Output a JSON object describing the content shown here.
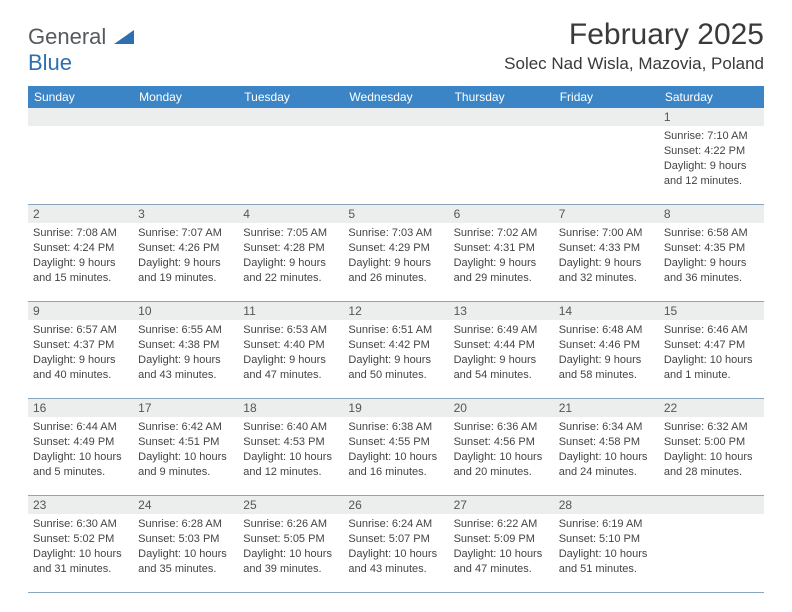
{
  "logo": {
    "line1": "General",
    "line2": "Blue"
  },
  "brand_colors": {
    "accent": "#2f6fb0",
    "header_bar": "#3b85c6",
    "text_gray": "#555a5f",
    "divider": "#8aa6bd",
    "daynum_bg": "#eceded"
  },
  "title": "February 2025",
  "location": "Solec Nad Wisla, Mazovia, Poland",
  "dow": [
    "Sunday",
    "Monday",
    "Tuesday",
    "Wednesday",
    "Thursday",
    "Friday",
    "Saturday"
  ],
  "calendar": {
    "first_weekday_index": 6,
    "num_days": 28
  },
  "days": {
    "1": {
      "sunrise": "7:10 AM",
      "sunset": "4:22 PM",
      "daylight": "9 hours and 12 minutes."
    },
    "2": {
      "sunrise": "7:08 AM",
      "sunset": "4:24 PM",
      "daylight": "9 hours and 15 minutes."
    },
    "3": {
      "sunrise": "7:07 AM",
      "sunset": "4:26 PM",
      "daylight": "9 hours and 19 minutes."
    },
    "4": {
      "sunrise": "7:05 AM",
      "sunset": "4:28 PM",
      "daylight": "9 hours and 22 minutes."
    },
    "5": {
      "sunrise": "7:03 AM",
      "sunset": "4:29 PM",
      "daylight": "9 hours and 26 minutes."
    },
    "6": {
      "sunrise": "7:02 AM",
      "sunset": "4:31 PM",
      "daylight": "9 hours and 29 minutes."
    },
    "7": {
      "sunrise": "7:00 AM",
      "sunset": "4:33 PM",
      "daylight": "9 hours and 32 minutes."
    },
    "8": {
      "sunrise": "6:58 AM",
      "sunset": "4:35 PM",
      "daylight": "9 hours and 36 minutes."
    },
    "9": {
      "sunrise": "6:57 AM",
      "sunset": "4:37 PM",
      "daylight": "9 hours and 40 minutes."
    },
    "10": {
      "sunrise": "6:55 AM",
      "sunset": "4:38 PM",
      "daylight": "9 hours and 43 minutes."
    },
    "11": {
      "sunrise": "6:53 AM",
      "sunset": "4:40 PM",
      "daylight": "9 hours and 47 minutes."
    },
    "12": {
      "sunrise": "6:51 AM",
      "sunset": "4:42 PM",
      "daylight": "9 hours and 50 minutes."
    },
    "13": {
      "sunrise": "6:49 AM",
      "sunset": "4:44 PM",
      "daylight": "9 hours and 54 minutes."
    },
    "14": {
      "sunrise": "6:48 AM",
      "sunset": "4:46 PM",
      "daylight": "9 hours and 58 minutes."
    },
    "15": {
      "sunrise": "6:46 AM",
      "sunset": "4:47 PM",
      "daylight": "10 hours and 1 minute."
    },
    "16": {
      "sunrise": "6:44 AM",
      "sunset": "4:49 PM",
      "daylight": "10 hours and 5 minutes."
    },
    "17": {
      "sunrise": "6:42 AM",
      "sunset": "4:51 PM",
      "daylight": "10 hours and 9 minutes."
    },
    "18": {
      "sunrise": "6:40 AM",
      "sunset": "4:53 PM",
      "daylight": "10 hours and 12 minutes."
    },
    "19": {
      "sunrise": "6:38 AM",
      "sunset": "4:55 PM",
      "daylight": "10 hours and 16 minutes."
    },
    "20": {
      "sunrise": "6:36 AM",
      "sunset": "4:56 PM",
      "daylight": "10 hours and 20 minutes."
    },
    "21": {
      "sunrise": "6:34 AM",
      "sunset": "4:58 PM",
      "daylight": "10 hours and 24 minutes."
    },
    "22": {
      "sunrise": "6:32 AM",
      "sunset": "5:00 PM",
      "daylight": "10 hours and 28 minutes."
    },
    "23": {
      "sunrise": "6:30 AM",
      "sunset": "5:02 PM",
      "daylight": "10 hours and 31 minutes."
    },
    "24": {
      "sunrise": "6:28 AM",
      "sunset": "5:03 PM",
      "daylight": "10 hours and 35 minutes."
    },
    "25": {
      "sunrise": "6:26 AM",
      "sunset": "5:05 PM",
      "daylight": "10 hours and 39 minutes."
    },
    "26": {
      "sunrise": "6:24 AM",
      "sunset": "5:07 PM",
      "daylight": "10 hours and 43 minutes."
    },
    "27": {
      "sunrise": "6:22 AM",
      "sunset": "5:09 PM",
      "daylight": "10 hours and 47 minutes."
    },
    "28": {
      "sunrise": "6:19 AM",
      "sunset": "5:10 PM",
      "daylight": "10 hours and 51 minutes."
    }
  },
  "labels": {
    "sunrise": "Sunrise: ",
    "sunset": "Sunset: ",
    "daylight": "Daylight: "
  }
}
